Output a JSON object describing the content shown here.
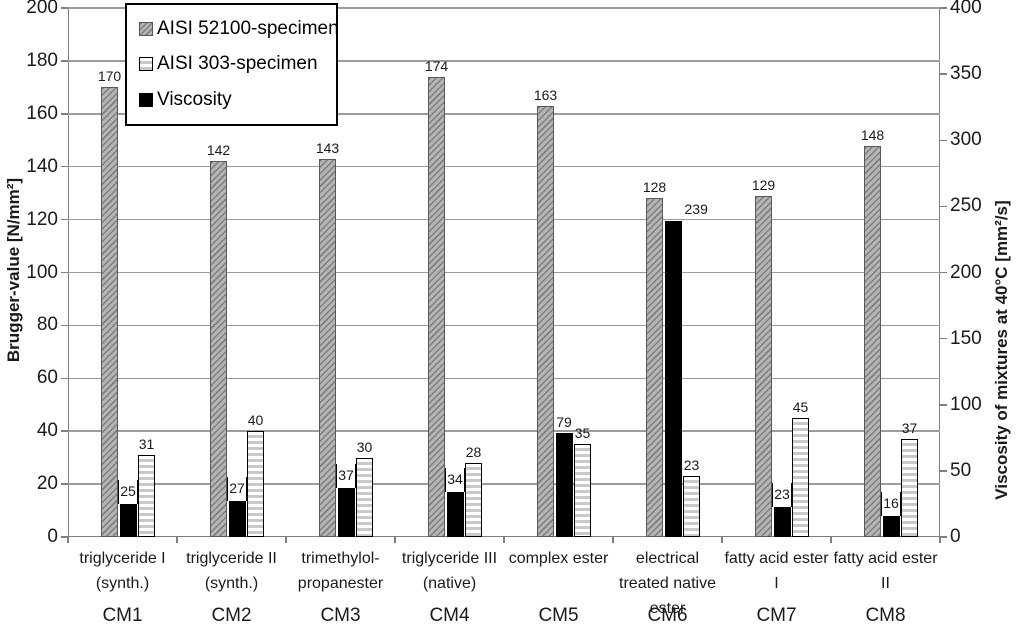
{
  "chart_data": {
    "type": "bar",
    "title": "",
    "categories": [
      {
        "code": "CM1",
        "lines": [
          "triglyceride I",
          "(synth.)"
        ]
      },
      {
        "code": "CM2",
        "lines": [
          "triglyceride II",
          "(synth.)"
        ]
      },
      {
        "code": "CM3",
        "lines": [
          "trimethylol-",
          "propanester"
        ]
      },
      {
        "code": "CM4",
        "lines": [
          "triglyceride III",
          "(native)"
        ]
      },
      {
        "code": "CM5",
        "lines": [
          "complex ester"
        ]
      },
      {
        "code": "CM6",
        "lines": [
          "electrical",
          "treated native",
          "ester"
        ]
      },
      {
        "code": "CM7",
        "lines": [
          "fatty acid ester",
          "I"
        ]
      },
      {
        "code": "CM8",
        "lines": [
          "fatty acid ester",
          "II"
        ]
      }
    ],
    "series": [
      {
        "name": "AISI 52100-specimen",
        "axis": "left",
        "style": "hatch",
        "values": [
          170,
          142,
          143,
          174,
          163,
          128,
          129,
          148
        ]
      },
      {
        "name": "Viscosity",
        "axis": "right",
        "style": "solid-black",
        "values": [
          25,
          27,
          37,
          34,
          79,
          239,
          23,
          16
        ],
        "label_modes": [
          "box",
          "box",
          "box",
          "box",
          "above",
          "right",
          "box",
          "box"
        ]
      },
      {
        "name": "AISI 303-specimen",
        "axis": "left",
        "style": "stripes",
        "values": [
          31,
          40,
          30,
          28,
          35,
          23,
          45,
          37
        ]
      }
    ],
    "left_axis": {
      "title": "Brugger-value [N/mm²]",
      "min": 0,
      "max": 200,
      "step": 20
    },
    "right_axis": {
      "title": "Viscosity of mixtures at 40°C [mm²/s]",
      "min": 0,
      "max": 400,
      "step": 50
    },
    "legend": {
      "position": "top-left",
      "items": [
        {
          "label": "AISI 52100-specimen",
          "swatch": "hatch"
        },
        {
          "label": "AISI 303-specimen",
          "swatch": "stripes"
        },
        {
          "label": "Viscosity",
          "swatch": "solid-black"
        }
      ]
    },
    "grid": "horizontal-major",
    "colors": {
      "hatch_fill": "#b5b5b5",
      "hatch_border": "#595959",
      "stripe_line": "#c9c9c9",
      "stripe_border": "#000000",
      "viscosity_bar": "#000000",
      "grid": "#9c9c9c",
      "axis": "#7f7f7f",
      "text": "#1a1a1a"
    }
  }
}
